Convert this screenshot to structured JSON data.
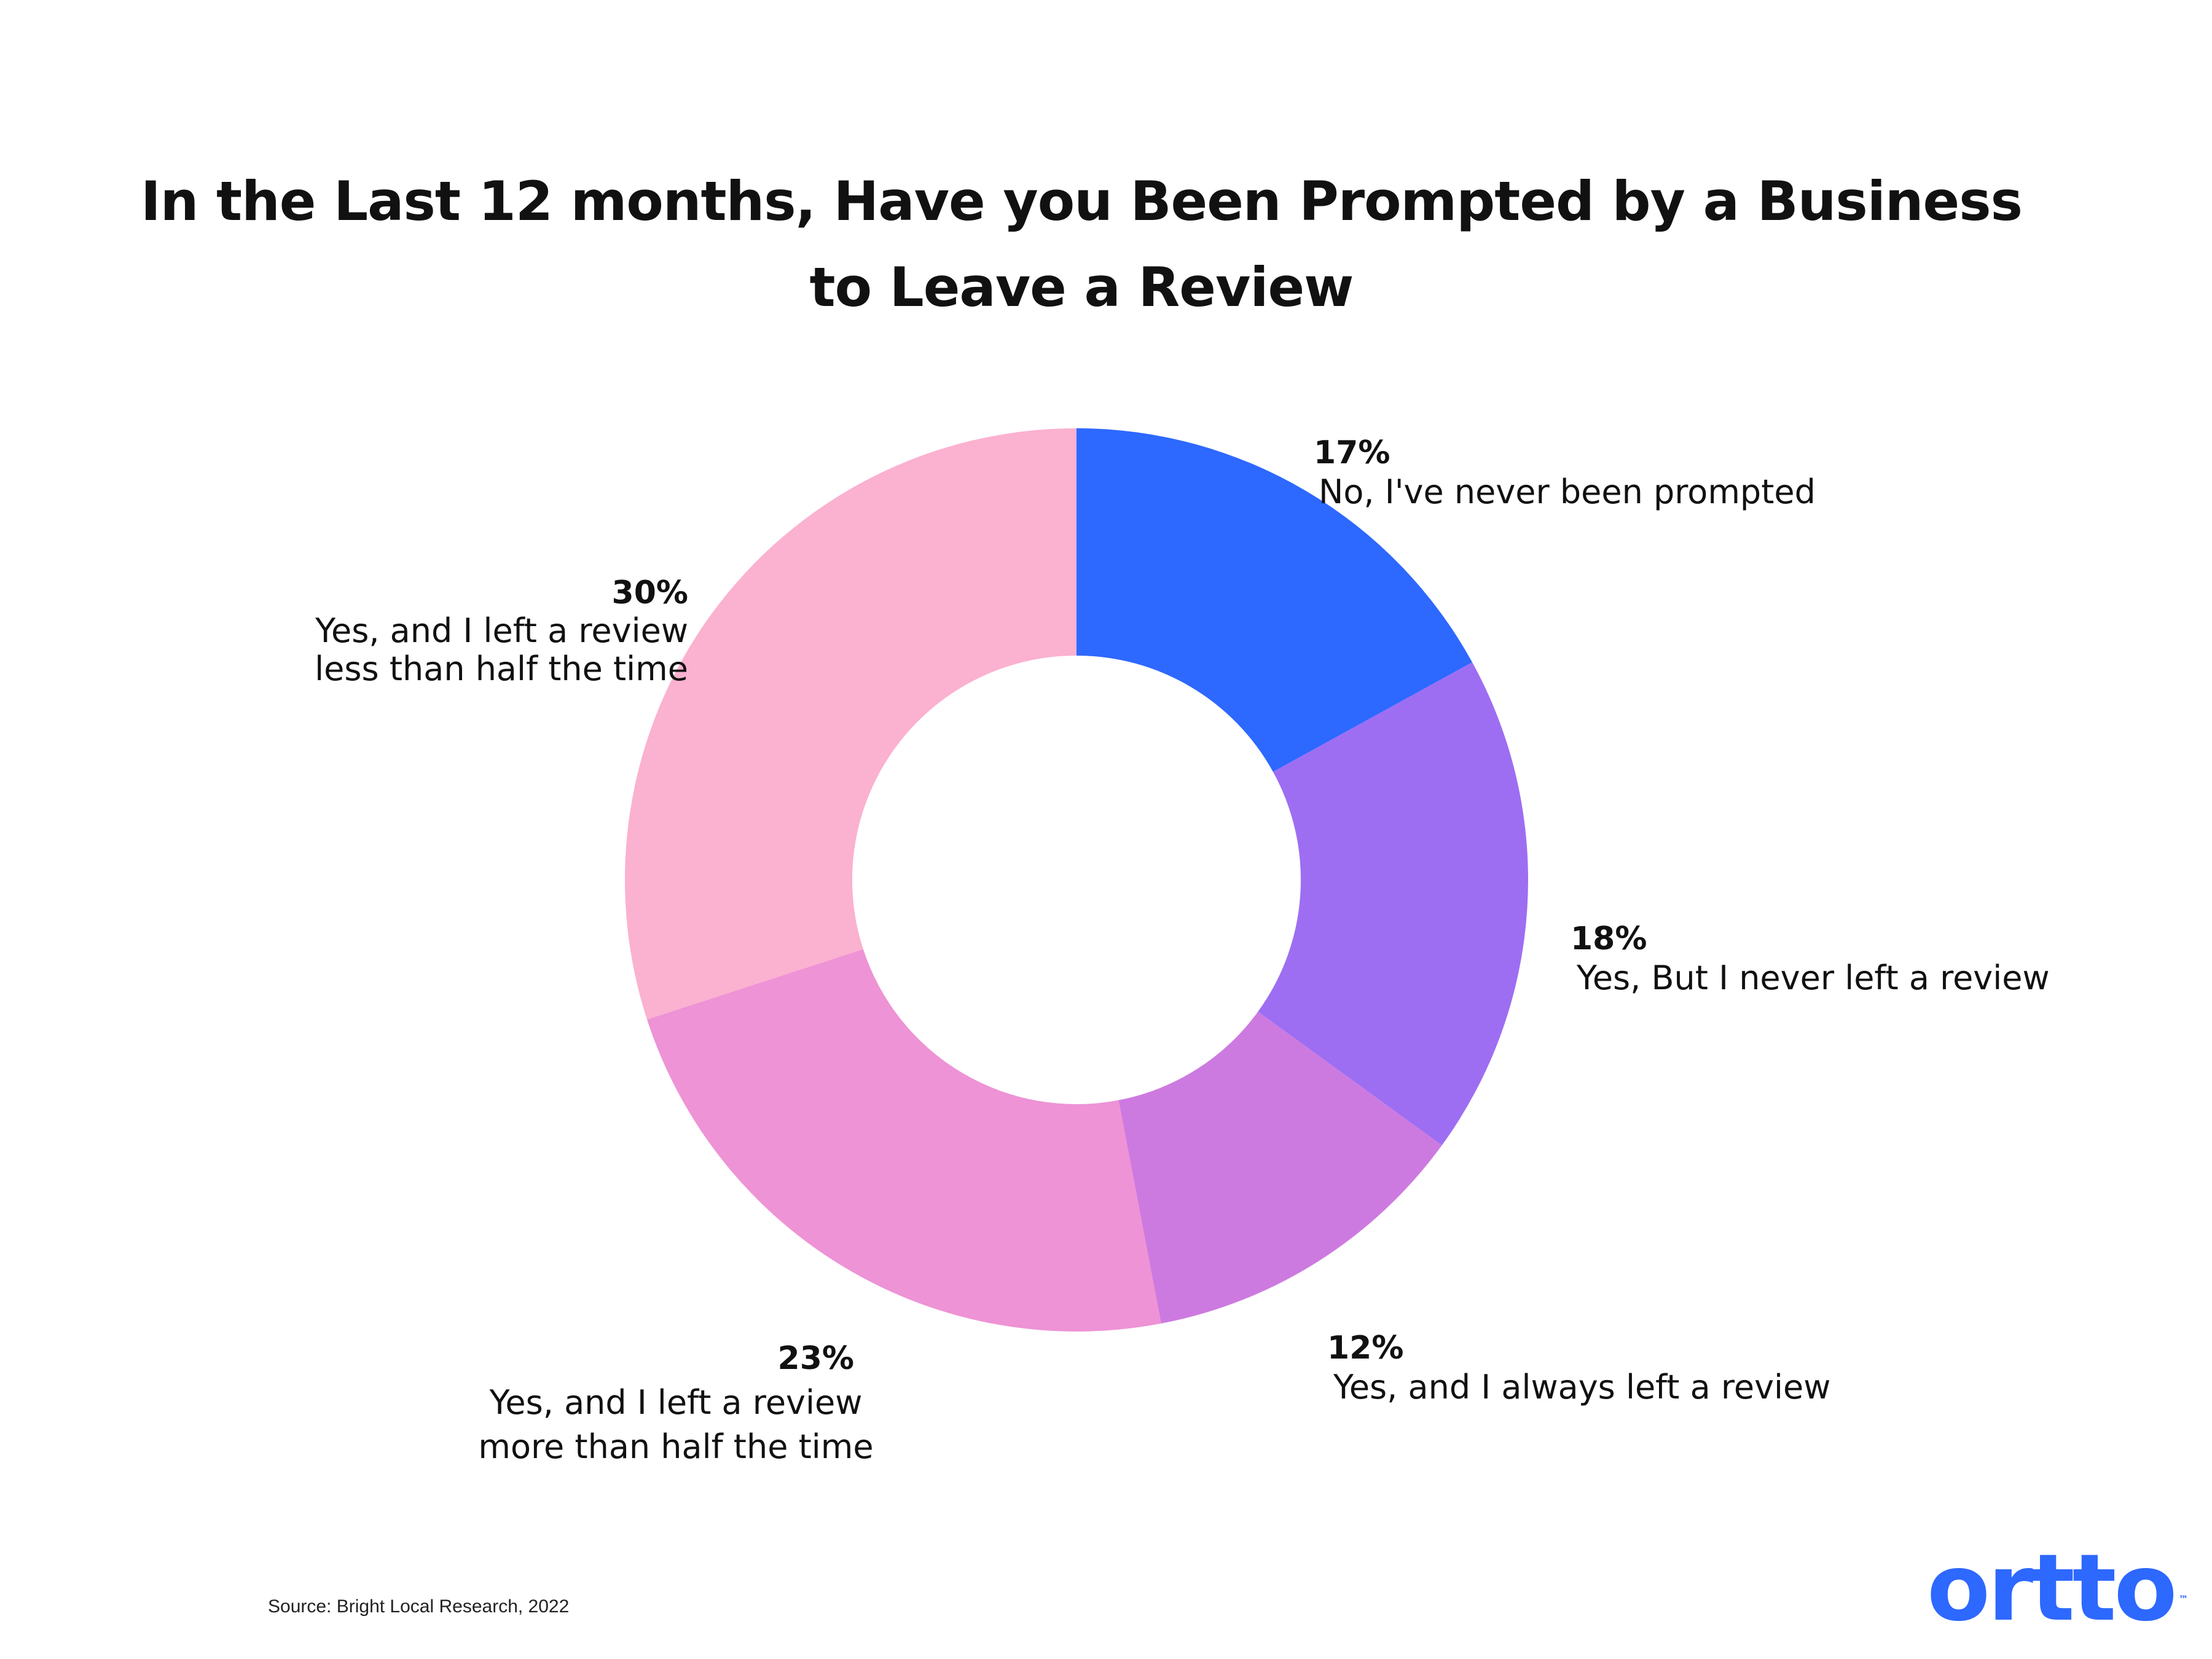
{
  "title_line1": "In the Last 12 months, Have you Been Prompted by a Business",
  "title_line2": "to Leave a Review",
  "source": "Source: Bright Local Research, 2022",
  "logo": {
    "text": "ortto",
    "tm": "™",
    "color": "#2d68ff"
  },
  "chart_data": {
    "type": "pie",
    "style": "donut",
    "title": "In the Last 12 months, Have you Been Prompted by a Business to Leave a Review",
    "slices": [
      {
        "label": "No, I've never been prompted",
        "value": 17,
        "pct_label": "17%",
        "color": "#2d68ff"
      },
      {
        "label": "Yes, But I never left a review",
        "value": 18,
        "pct_label": "18%",
        "color": "#9d6ef2"
      },
      {
        "label": "Yes, and I always left a review",
        "value": 12,
        "pct_label": "12%",
        "color": "#cd7ae0"
      },
      {
        "label": "Yes, and I left a review\nmore than half the time",
        "value": 23,
        "pct_label": "23%",
        "color": "#ee93d5"
      },
      {
        "label": "Yes, and I left a review\nless than half the time",
        "value": 30,
        "pct_label": "30%",
        "color": "#fbb1d0"
      }
    ]
  }
}
